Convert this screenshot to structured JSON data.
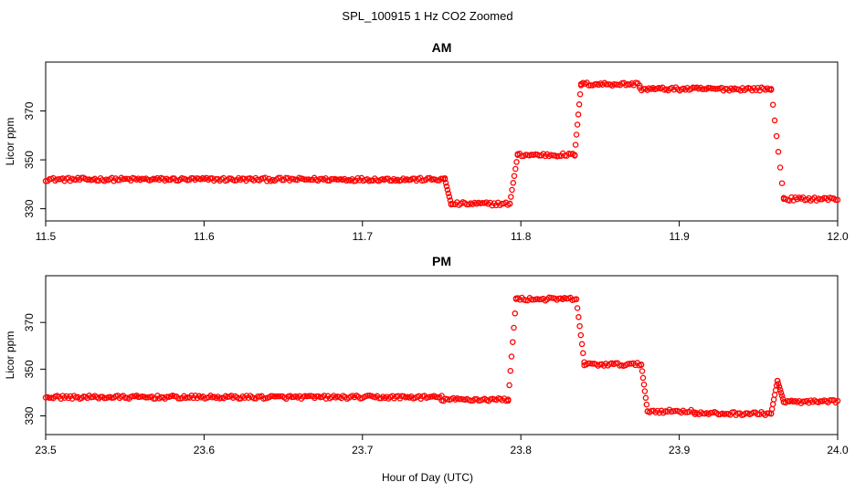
{
  "figure": {
    "title": "SPL_100915  1 Hz CO2 Zoomed",
    "xlabel": "Hour of Day (UTC)"
  },
  "chart_data": [
    {
      "type": "scatter",
      "title": "AM",
      "ylabel": "Licor ppm",
      "xlim": [
        11.5,
        12.0
      ],
      "ylim": [
        325,
        390
      ],
      "xticks": [
        11.5,
        11.6,
        11.7,
        11.8,
        11.9,
        12.0
      ],
      "xtick_labels": [
        "11.5",
        "11.6",
        "11.7",
        "11.8",
        "11.9",
        "12.0"
      ],
      "yticks": [
        330,
        350,
        370
      ],
      "ytick_labels": [
        "330",
        "350",
        "370"
      ],
      "marker_color": "#ff0000",
      "segments": [
        {
          "x_start": 11.5,
          "x_end": 11.752,
          "y_start": 342,
          "y_end": 342
        },
        {
          "x_start": 11.752,
          "x_end": 11.756,
          "y_start": 342,
          "y_end": 332
        },
        {
          "x_start": 11.756,
          "x_end": 11.793,
          "y_start": 332,
          "y_end": 332
        },
        {
          "x_start": 11.793,
          "x_end": 11.798,
          "y_start": 332,
          "y_end": 352
        },
        {
          "x_start": 11.798,
          "x_end": 11.834,
          "y_start": 352,
          "y_end": 352
        },
        {
          "x_start": 11.834,
          "x_end": 11.838,
          "y_start": 352,
          "y_end": 381
        },
        {
          "x_start": 11.838,
          "x_end": 11.875,
          "y_start": 381,
          "y_end": 381
        },
        {
          "x_start": 11.875,
          "x_end": 11.958,
          "y_start": 379,
          "y_end": 379
        },
        {
          "x_start": 11.958,
          "x_end": 11.966,
          "y_start": 379,
          "y_end": 334
        },
        {
          "x_start": 11.966,
          "x_end": 12.0,
          "y_start": 334,
          "y_end": 334
        }
      ]
    },
    {
      "type": "scatter",
      "title": "PM",
      "ylabel": "Licor ppm",
      "xlim": [
        23.5,
        24.0
      ],
      "ylim": [
        322,
        390
      ],
      "xticks": [
        23.5,
        23.6,
        23.7,
        23.8,
        23.9,
        24.0
      ],
      "xtick_labels": [
        "23.5",
        "23.6",
        "23.7",
        "23.8",
        "23.9",
        "24.0"
      ],
      "yticks": [
        330,
        350,
        370
      ],
      "ytick_labels": [
        "330",
        "350",
        "370"
      ],
      "marker_color": "#ff0000",
      "segments": [
        {
          "x_start": 23.5,
          "x_end": 23.75,
          "y_start": 338,
          "y_end": 338
        },
        {
          "x_start": 23.75,
          "x_end": 23.792,
          "y_start": 337,
          "y_end": 337
        },
        {
          "x_start": 23.792,
          "x_end": 23.797,
          "y_start": 337,
          "y_end": 380
        },
        {
          "x_start": 23.797,
          "x_end": 23.835,
          "y_start": 380,
          "y_end": 380
        },
        {
          "x_start": 23.835,
          "x_end": 23.84,
          "y_start": 380,
          "y_end": 353
        },
        {
          "x_start": 23.84,
          "x_end": 23.876,
          "y_start": 352,
          "y_end": 352
        },
        {
          "x_start": 23.876,
          "x_end": 23.88,
          "y_start": 352,
          "y_end": 332
        },
        {
          "x_start": 23.88,
          "x_end": 23.91,
          "y_start": 332,
          "y_end": 332
        },
        {
          "x_start": 23.91,
          "x_end": 23.958,
          "y_start": 331,
          "y_end": 331
        },
        {
          "x_start": 23.958,
          "x_end": 23.962,
          "y_start": 331,
          "y_end": 345
        },
        {
          "x_start": 23.962,
          "x_end": 23.966,
          "y_start": 345,
          "y_end": 336
        },
        {
          "x_start": 23.966,
          "x_end": 24.0,
          "y_start": 336,
          "y_end": 336
        }
      ]
    }
  ]
}
